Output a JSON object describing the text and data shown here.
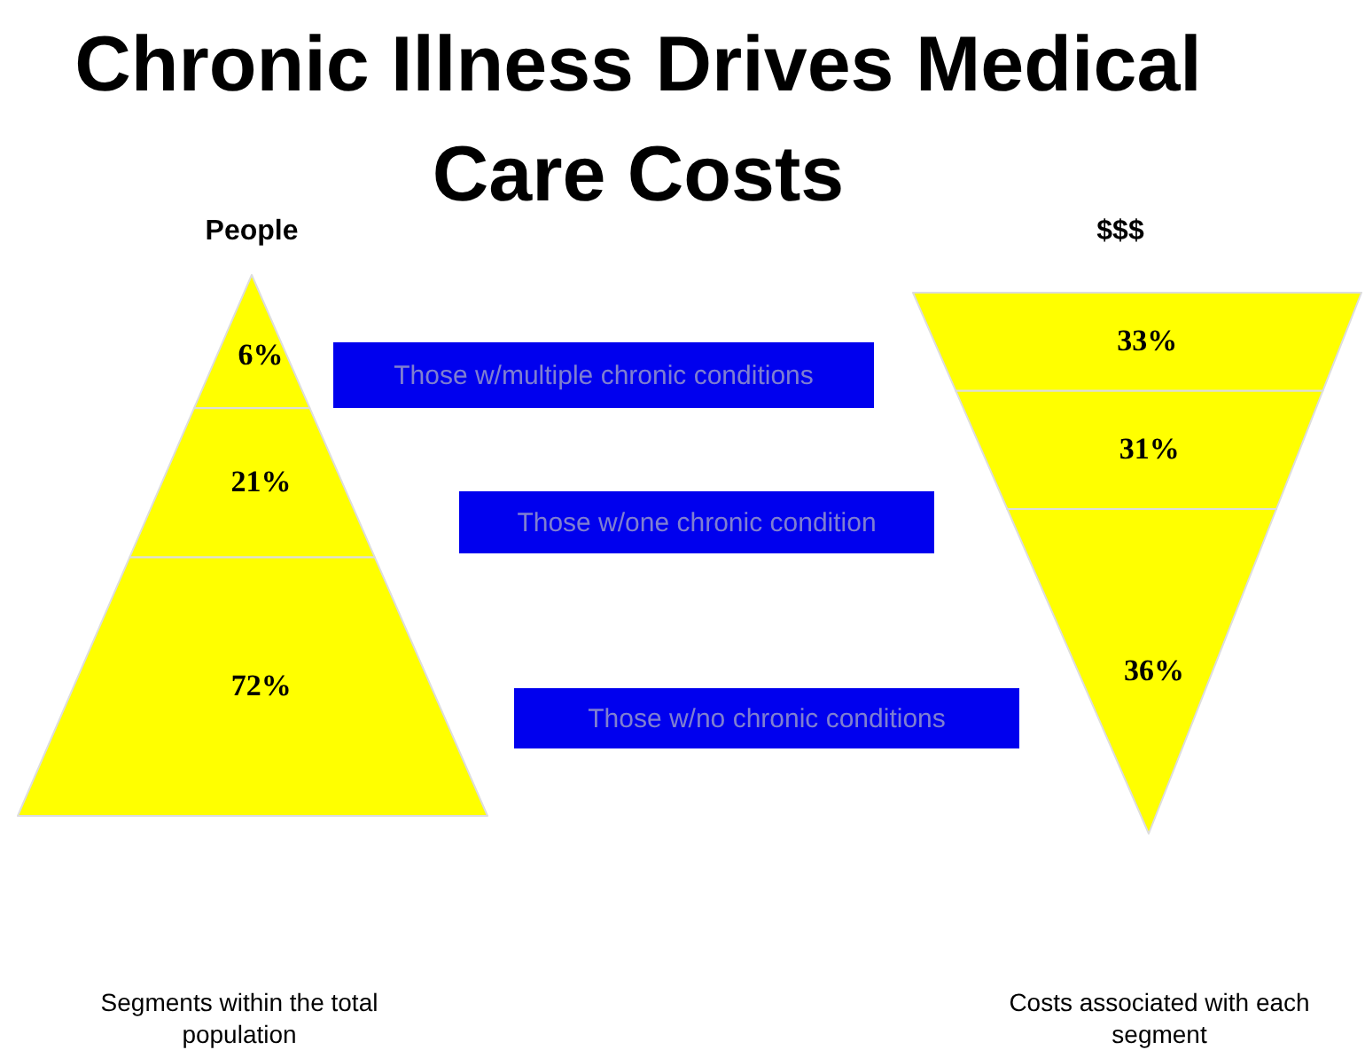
{
  "chart_data": {
    "type": "other",
    "title": "Chronic Illness Drives Medical Care Costs",
    "categories": [
      "Those w/multiple chronic conditions",
      "Those w/one chronic condition",
      "Those w/no chronic conditions"
    ],
    "series": [
      {
        "name": "People",
        "color": "#ffff00",
        "values": [
          6,
          21,
          72
        ],
        "value_labels": [
          "6%",
          "21%",
          "72%"
        ]
      },
      {
        "name": "$$$",
        "color": "#ffff00",
        "values": [
          33,
          31,
          36
        ],
        "value_labels": [
          "33%",
          "31%",
          "36%"
        ]
      }
    ],
    "annotations": [
      "Segments within the total population",
      "Costs associated with each segment"
    ]
  }
}
